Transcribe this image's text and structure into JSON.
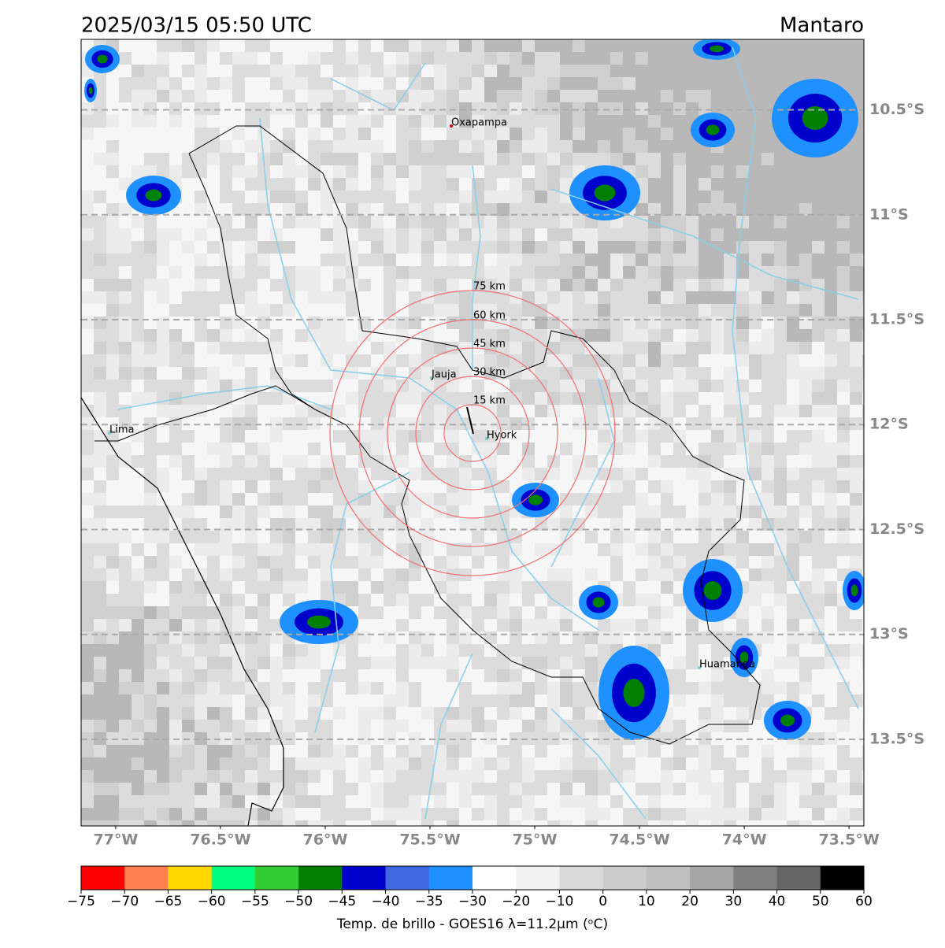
{
  "header": {
    "title": "2025/03/15 05:50 UTC",
    "region": "Mantaro"
  },
  "map": {
    "xlim": [
      -77.165,
      -73.429
    ],
    "ylim": [
      -13.913,
      -10.164
    ],
    "lat_ticks": [
      {
        "value": -10.5,
        "label": "10.5°S"
      },
      {
        "value": -11,
        "label": "11°S"
      },
      {
        "value": -11.5,
        "label": "11.5°S"
      },
      {
        "value": -12,
        "label": "12°S"
      },
      {
        "value": -12.5,
        "label": "12.5°S"
      },
      {
        "value": -13,
        "label": "13°S"
      },
      {
        "value": -13.5,
        "label": "13.5°S"
      }
    ],
    "lon_ticks": [
      {
        "value": -77,
        "label": "77°W"
      },
      {
        "value": -76.5,
        "label": "76.5°W"
      },
      {
        "value": -76,
        "label": "76°W"
      },
      {
        "value": -75.5,
        "label": "75.5°W"
      },
      {
        "value": -75,
        "label": "75°W"
      },
      {
        "value": -74.5,
        "label": "74.5°W"
      },
      {
        "value": -74,
        "label": "74°W"
      },
      {
        "value": -73.5,
        "label": "73.5°W"
      }
    ],
    "cities": [
      "Oxapampa",
      "Jauja",
      "Lima",
      "Hyork",
      "Huamanga"
    ],
    "rings": [
      "15 km",
      "30 km",
      "45 km",
      "60 km",
      "75 km"
    ]
  },
  "colorbar": {
    "label": "Temp. de brillo - GOES16 λ=11.2μm (ᵒC)",
    "colors": [
      "#ff0000",
      "#ff7f50",
      "#ffd700",
      "#00ff7f",
      "#32cd32",
      "#008000",
      "#0000cd",
      "#4169e1",
      "#1e90ff",
      "#ffffff",
      "#f2f2f2",
      "#d9d9d9",
      "#cccccc",
      "#bfbfbf",
      "#a6a6a6",
      "#808080",
      "#666666",
      "#000000"
    ],
    "ticks": [
      {
        "value": -75,
        "label": "−75"
      },
      {
        "value": -70,
        "label": "−70"
      },
      {
        "value": -65,
        "label": "−65"
      },
      {
        "value": -60,
        "label": "−60"
      },
      {
        "value": -55,
        "label": "−55"
      },
      {
        "value": -50,
        "label": "−50"
      },
      {
        "value": -45,
        "label": "−45"
      },
      {
        "value": -40,
        "label": "−40"
      },
      {
        "value": -35,
        "label": "−35"
      },
      {
        "value": -30,
        "label": "−30"
      },
      {
        "value": -20,
        "label": "−20"
      },
      {
        "value": -10,
        "label": "−10"
      },
      0,
      10,
      20,
      30,
      40,
      50,
      60
    ]
  }
}
